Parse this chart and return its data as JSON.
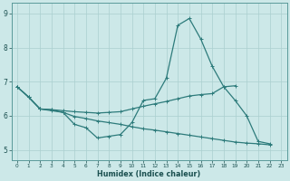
{
  "title": "",
  "xlabel": "Humidex (Indice chaleur)",
  "background_color": "#cce8e8",
  "grid_color": "#aacfcf",
  "line_color": "#2d7b7b",
  "x_range": [
    -0.5,
    23.5
  ],
  "y_range": [
    4.7,
    9.3
  ],
  "yticks": [
    5,
    6,
    7,
    8,
    9
  ],
  "xticks": [
    0,
    1,
    2,
    3,
    4,
    5,
    6,
    7,
    8,
    9,
    10,
    11,
    12,
    13,
    14,
    15,
    16,
    17,
    18,
    19,
    20,
    21,
    22,
    23
  ],
  "line1_x": [
    0,
    1,
    2,
    3,
    4,
    5,
    6,
    7,
    8,
    9,
    10,
    11,
    12,
    13,
    14,
    15,
    16,
    17,
    18,
    19,
    20,
    21,
    22
  ],
  "line1_y": [
    6.85,
    6.55,
    6.2,
    6.15,
    6.1,
    5.75,
    5.65,
    5.35,
    5.4,
    5.45,
    5.8,
    6.45,
    6.5,
    7.1,
    8.65,
    8.85,
    8.25,
    7.45,
    6.85,
    6.45,
    6.0,
    5.25,
    5.18
  ],
  "line2_x": [
    0,
    1,
    2,
    3,
    4,
    5,
    6,
    7,
    8,
    9,
    10,
    11,
    12,
    13,
    14,
    15,
    16,
    17,
    18,
    19
  ],
  "line2_y": [
    6.85,
    6.55,
    6.2,
    6.18,
    6.15,
    6.12,
    6.1,
    6.08,
    6.1,
    6.12,
    6.2,
    6.28,
    6.35,
    6.42,
    6.5,
    6.58,
    6.62,
    6.65,
    6.85,
    6.88
  ],
  "line3_x": [
    0,
    1,
    2,
    3,
    4,
    5,
    6,
    7,
    8,
    9,
    10,
    11,
    12,
    13,
    14,
    15,
    16,
    17,
    18,
    19,
    20,
    21,
    22
  ],
  "line3_y": [
    6.85,
    6.55,
    6.2,
    6.18,
    6.1,
    5.98,
    5.92,
    5.85,
    5.8,
    5.75,
    5.68,
    5.62,
    5.58,
    5.53,
    5.48,
    5.43,
    5.38,
    5.33,
    5.28,
    5.23,
    5.2,
    5.18,
    5.15
  ]
}
